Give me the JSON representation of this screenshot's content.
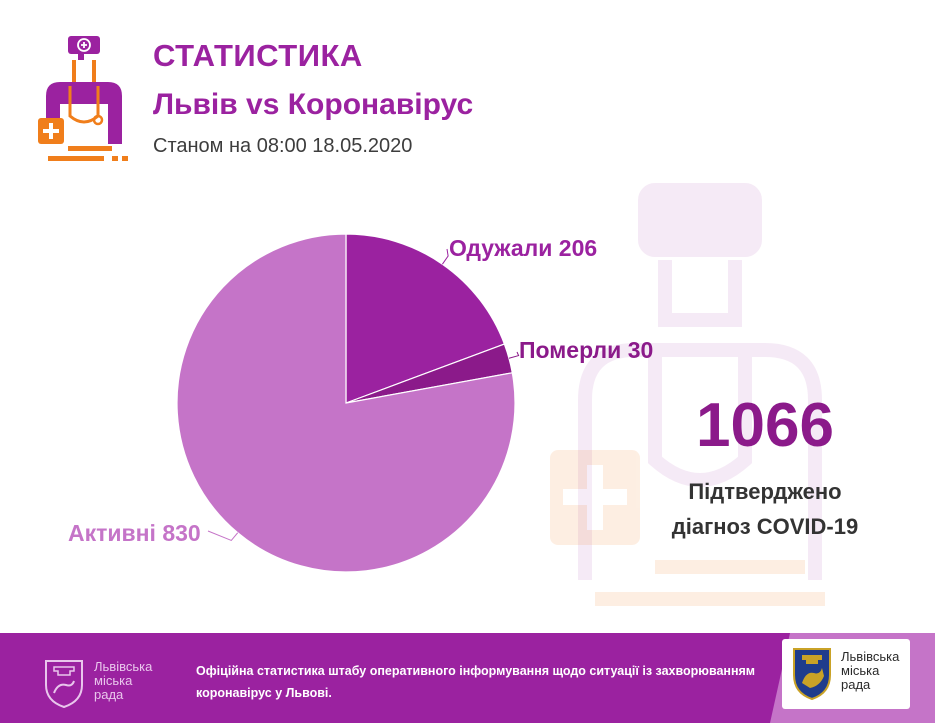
{
  "header": {
    "title": "СТАТИСТИКА",
    "subtitle": "Львів vs Коронавірус",
    "date": "Станом на 08:00 18.05.2020",
    "icon": "doctor-icon"
  },
  "chart_data": {
    "type": "pie",
    "categories": [
      "Одужали",
      "Померли",
      "Активні"
    ],
    "values": [
      206,
      30,
      830
    ],
    "labels": [
      "Одужали 206",
      "Померли 30",
      "Активні 830"
    ],
    "colors": [
      "#9b22a0",
      "#8b1a8a",
      "#c574c8"
    ]
  },
  "summary": {
    "total": "1066",
    "line1": "Підтверджено",
    "line2": "діагноз COVID-19"
  },
  "footer": {
    "org_line1": "Львівська",
    "org_line2": "міська",
    "org_line3": "рада",
    "text_line1": "Офіційна статистика штабу оперативного інформування щодо ситуації із захворюванням",
    "text_line2": "коронавірус у Львові.",
    "badge_line1": "Львівська",
    "badge_line2": "міська",
    "badge_line3": "рада"
  },
  "colors": {
    "accent": "#9b22a0",
    "orange": "#f07e1b"
  }
}
